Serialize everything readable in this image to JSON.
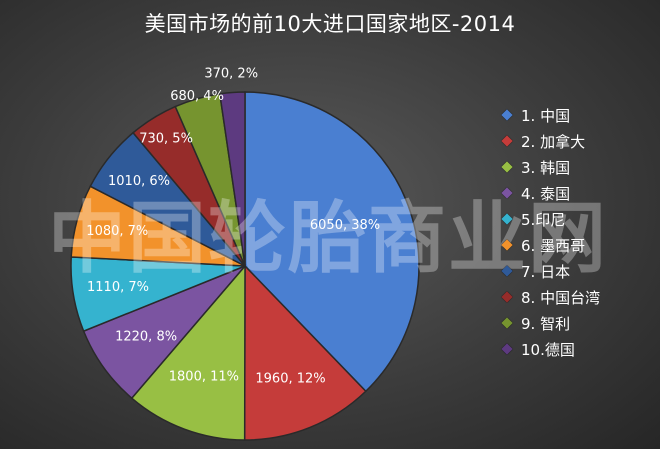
{
  "title": "美国市场的前10大进口国家地区-2014",
  "watermark": "中国轮胎商业网",
  "chart_data": {
    "type": "pie",
    "start_angle_deg": 0,
    "direction": "clockwise",
    "legend_position": "right",
    "slices": [
      {
        "name": "1. 中国",
        "value": 6050,
        "percent": "38%",
        "label": "6050, 38%",
        "color": "#4a7fd1"
      },
      {
        "name": "2. 加拿大",
        "value": 1960,
        "percent": "12%",
        "label": "1960, 12%",
        "color": "#c53c3a"
      },
      {
        "name": "3. 韩国",
        "value": 1800,
        "percent": "11%",
        "label": "1800, 11%",
        "color": "#98bf44"
      },
      {
        "name": "4. 泰国",
        "value": 1220,
        "percent": "8%",
        "label": "1220, 8%",
        "color": "#7b54a1"
      },
      {
        "name": "5.印尼",
        "value": 1110,
        "percent": "7%",
        "label": "1110, 7%",
        "color": "#35b3cf"
      },
      {
        "name": "6. 墨西哥",
        "value": 1080,
        "percent": "7%",
        "label": "1080, 7%",
        "color": "#f2922b"
      },
      {
        "name": "7. 日本",
        "value": 1010,
        "percent": "6%",
        "label": "1010, 6%",
        "color": "#2f5a99"
      },
      {
        "name": "8. 中国台湾",
        "value": 730,
        "percent": "5%",
        "label": "730, 5%",
        "color": "#962c2a"
      },
      {
        "name": "9. 智利",
        "value": 680,
        "percent": "4%",
        "label": "680, 4%",
        "color": "#76942f"
      },
      {
        "name": "10.德国",
        "value": 370,
        "percent": "2%",
        "label": "370, 2%",
        "color": "#5d3a80"
      }
    ]
  }
}
